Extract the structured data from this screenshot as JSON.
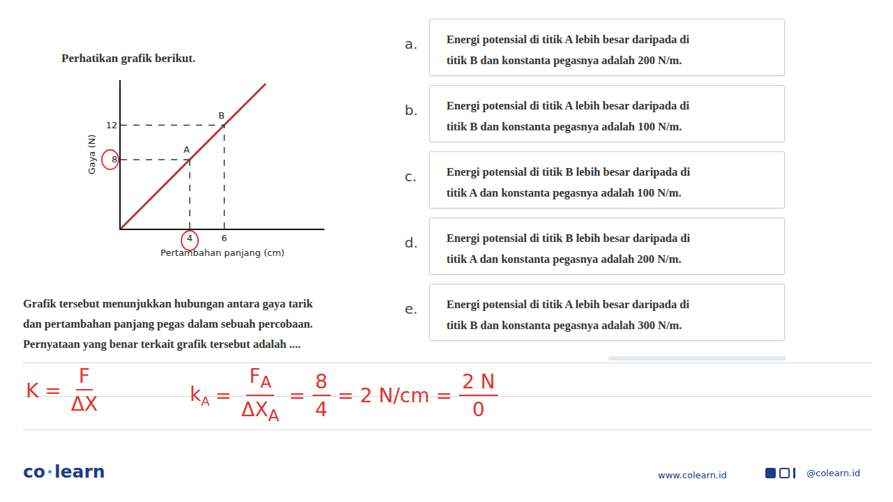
{
  "intro": "Perhatikan grafik berikut.",
  "chart_data": {
    "type": "line",
    "x": [
      0,
      4,
      6,
      8.4
    ],
    "values": [
      0,
      8,
      12,
      16.8
    ],
    "color": "#b23a2e",
    "xlabel": "Pertambahan panjang (cm)",
    "ylabel": "Gaya (N)",
    "xlim": [
      0,
      11.8
    ],
    "ylim": [
      0,
      17.2
    ],
    "xticks": [
      4,
      6
    ],
    "yticks": [
      8,
      12
    ],
    "grid": false,
    "points": [
      {
        "label": "A",
        "x": 4,
        "y": 8
      },
      {
        "label": "B",
        "x": 6,
        "y": 12
      }
    ]
  },
  "question": [
    "Grafik tersebut menunjukkan hubungan antara gaya tarik",
    "dan pertambahan panjang pegas dalam sebuah percobaan.",
    "Pernyataan yang benar terkait grafik tersebut adalah ...."
  ],
  "options": [
    {
      "letter": "a.",
      "lines": [
        "Energi potensial di titik A lebih besar daripada di",
        "titik B dan konstanta pegasnya adalah 200 N/m."
      ]
    },
    {
      "letter": "b.",
      "lines": [
        "Energi potensial di titik A lebih besar daripada di",
        "titik B dan konstanta pegasnya adalah 100 N/m."
      ]
    },
    {
      "letter": "c.",
      "lines": [
        "Energi potensial di titik B lebih besar daripada di",
        "titik A dan konstanta pegasnya adalah 100 N/m."
      ]
    },
    {
      "letter": "d.",
      "lines": [
        "Energi potensial di titik B lebih besar daripada di",
        "titik A dan konstanta pegasnya adalah 200 N/m."
      ]
    },
    {
      "letter": "e.",
      "lines": [
        "Energi potensial di titik A lebih besar daripada di",
        "titik B dan konstanta pegasnya adalah 300 N/m."
      ]
    }
  ],
  "handwriting": {
    "circled": {
      "x": 4,
      "y": 8
    },
    "line1": [
      {
        "text": "K ="
      },
      {
        "num": "F",
        "den": "ΔX"
      }
    ],
    "line2": [
      {
        "text": "k",
        "sub": "A"
      },
      {
        "text": "="
      },
      {
        "num": "F",
        "num_sub": "A",
        "den": "ΔX",
        "den_sub": "A"
      },
      {
        "text": "="
      },
      {
        "num": "8",
        "den": "4"
      },
      {
        "text": "= 2 N/cm ="
      },
      {
        "num": "2 N",
        "den": "0"
      }
    ]
  },
  "footer": {
    "logo": [
      "co",
      "learn"
    ],
    "website": "www.colearn.id",
    "social": "@colearn.id"
  }
}
